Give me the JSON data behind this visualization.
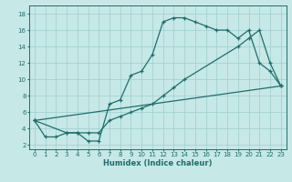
{
  "xlabel": "Humidex (Indice chaleur)",
  "xlim": [
    -0.5,
    23.5
  ],
  "ylim": [
    1.5,
    19
  ],
  "xticks": [
    0,
    1,
    2,
    3,
    4,
    5,
    6,
    7,
    8,
    9,
    10,
    11,
    12,
    13,
    14,
    15,
    16,
    17,
    18,
    19,
    20,
    21,
    22,
    23
  ],
  "yticks": [
    2,
    4,
    6,
    8,
    10,
    12,
    14,
    16,
    18
  ],
  "bg_color": "#c6e8e6",
  "grid_color": "#9ecece",
  "line_color": "#1e6e6e",
  "line1_x": [
    0,
    1,
    2,
    3,
    4,
    5,
    6,
    7,
    8,
    9,
    10,
    11,
    12,
    13,
    14,
    15,
    16,
    17,
    18,
    19,
    20,
    21,
    22,
    23
  ],
  "line1_y": [
    5,
    3,
    3,
    3.5,
    3.5,
    2.5,
    2.5,
    7,
    7.5,
    10.5,
    11,
    13,
    17,
    17.5,
    17.5,
    17,
    16.5,
    16,
    16,
    15,
    16,
    12,
    11,
    9.2
  ],
  "line2_x": [
    0,
    3,
    4,
    5,
    6,
    7,
    8,
    9,
    10,
    11,
    12,
    13,
    14,
    19,
    20,
    21,
    22,
    23
  ],
  "line2_y": [
    5,
    3.5,
    3.5,
    3.5,
    3.5,
    5.0,
    5.5,
    6.0,
    6.5,
    7.0,
    8.0,
    9.0,
    10.0,
    14.0,
    15.0,
    16.0,
    12.0,
    9.2
  ],
  "line3_x": [
    0,
    23
  ],
  "line3_y": [
    5,
    9.2
  ]
}
